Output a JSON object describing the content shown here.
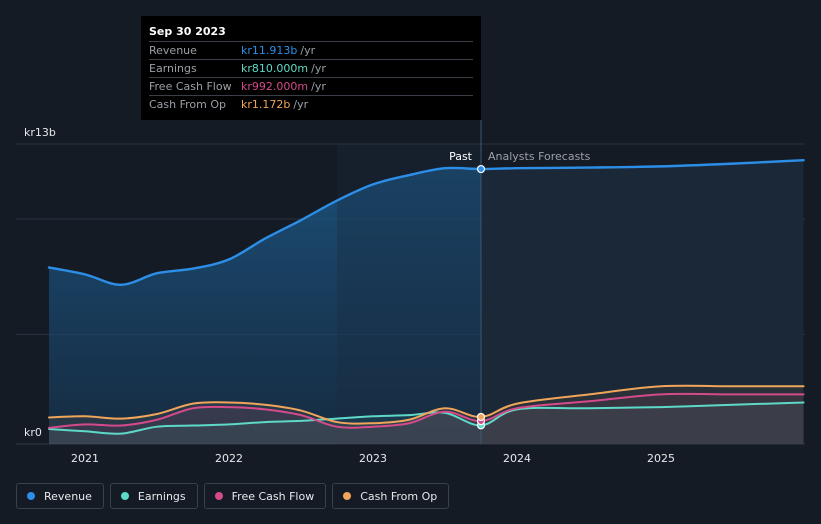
{
  "chart_data": {
    "type": "area",
    "y_axis": {
      "max_label": "kr13b",
      "min_label": "kr0",
      "ylim": [
        0,
        13
      ]
    },
    "x_ticks": [
      "2021",
      "2022",
      "2023",
      "2024",
      "2025"
    ],
    "divider_labels": {
      "past": "Past",
      "forecast": "Analysts Forecasts"
    },
    "divider_date": 2023.75,
    "series": [
      {
        "name": "Revenue",
        "color": "#2c8ee6",
        "points": [
          [
            2020.75,
            7.65
          ],
          [
            2021.0,
            7.35
          ],
          [
            2021.25,
            6.9
          ],
          [
            2021.5,
            7.4
          ],
          [
            2021.75,
            7.6
          ],
          [
            2022.0,
            8.0
          ],
          [
            2022.25,
            8.9
          ],
          [
            2022.5,
            9.7
          ],
          [
            2022.75,
            10.55
          ],
          [
            2023.0,
            11.25
          ],
          [
            2023.25,
            11.65
          ],
          [
            2023.5,
            11.95
          ],
          [
            2023.75,
            11.913
          ],
          [
            2024.0,
            11.95
          ],
          [
            2024.5,
            11.98
          ],
          [
            2025.0,
            12.03
          ],
          [
            2025.5,
            12.15
          ],
          [
            2025.99,
            12.3
          ]
        ]
      },
      {
        "name": "Earnings",
        "color": "#5ed9c7",
        "points": [
          [
            2020.75,
            0.65
          ],
          [
            2021.0,
            0.55
          ],
          [
            2021.25,
            0.45
          ],
          [
            2021.5,
            0.75
          ],
          [
            2021.75,
            0.8
          ],
          [
            2022.0,
            0.85
          ],
          [
            2022.25,
            0.95
          ],
          [
            2022.5,
            1.0
          ],
          [
            2022.75,
            1.1
          ],
          [
            2023.0,
            1.2
          ],
          [
            2023.25,
            1.25
          ],
          [
            2023.5,
            1.35
          ],
          [
            2023.75,
            0.81
          ],
          [
            2024.0,
            1.5
          ],
          [
            2024.5,
            1.55
          ],
          [
            2025.0,
            1.6
          ],
          [
            2025.5,
            1.7
          ],
          [
            2025.99,
            1.8
          ]
        ]
      },
      {
        "name": "Free Cash Flow",
        "color": "#d44a8a",
        "points": [
          [
            2020.75,
            0.7
          ],
          [
            2021.0,
            0.85
          ],
          [
            2021.25,
            0.8
          ],
          [
            2021.5,
            1.05
          ],
          [
            2021.75,
            1.55
          ],
          [
            2022.0,
            1.6
          ],
          [
            2022.25,
            1.5
          ],
          [
            2022.5,
            1.25
          ],
          [
            2022.75,
            0.75
          ],
          [
            2023.0,
            0.75
          ],
          [
            2023.25,
            0.9
          ],
          [
            2023.5,
            1.4
          ],
          [
            2023.75,
            0.992
          ],
          [
            2024.0,
            1.55
          ],
          [
            2024.5,
            1.85
          ],
          [
            2025.0,
            2.15
          ],
          [
            2025.5,
            2.15
          ],
          [
            2025.99,
            2.15
          ]
        ]
      },
      {
        "name": "Cash From Op",
        "color": "#f0a55a",
        "points": [
          [
            2020.75,
            1.15
          ],
          [
            2021.0,
            1.2
          ],
          [
            2021.25,
            1.1
          ],
          [
            2021.5,
            1.3
          ],
          [
            2021.75,
            1.75
          ],
          [
            2022.0,
            1.8
          ],
          [
            2022.25,
            1.7
          ],
          [
            2022.5,
            1.45
          ],
          [
            2022.75,
            0.95
          ],
          [
            2023.0,
            0.9
          ],
          [
            2023.25,
            1.05
          ],
          [
            2023.5,
            1.55
          ],
          [
            2023.75,
            1.172
          ],
          [
            2024.0,
            1.75
          ],
          [
            2024.5,
            2.15
          ],
          [
            2025.0,
            2.5
          ],
          [
            2025.5,
            2.5
          ],
          [
            2025.99,
            2.5
          ]
        ]
      }
    ]
  },
  "tooltip": {
    "date": "Sep 30 2023",
    "rows": [
      {
        "label": "Revenue",
        "value": "kr11.913b",
        "unit": "/yr",
        "color": "#2c8ee6"
      },
      {
        "label": "Earnings",
        "value": "kr810.000m",
        "unit": "/yr",
        "color": "#5ed9c7"
      },
      {
        "label": "Free Cash Flow",
        "value": "kr992.000m",
        "unit": "/yr",
        "color": "#d44a8a"
      },
      {
        "label": "Cash From Op",
        "value": "kr1.172b",
        "unit": "/yr",
        "color": "#f0a55a"
      }
    ]
  },
  "legend": [
    {
      "label": "Revenue",
      "color": "#2c8ee6"
    },
    {
      "label": "Earnings",
      "color": "#5ed9c7"
    },
    {
      "label": "Free Cash Flow",
      "color": "#d44a8a"
    },
    {
      "label": "Cash From Op",
      "color": "#f0a55a"
    }
  ]
}
